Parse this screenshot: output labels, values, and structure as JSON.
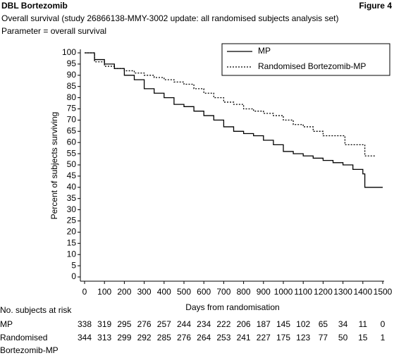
{
  "header": {
    "left": "DBL Bortezomib",
    "right": "Figure 4"
  },
  "chart_data": {
    "type": "line",
    "drawstyle": "steps-post",
    "title": "Overall survival (study 26866138-MMY-3002 update: all randomised subjects analysis set)",
    "subtitle": "Parameter = overall survival",
    "xlabel": "Days from randomisation",
    "ylabel": "Percent of subjects surviving",
    "xlim": [
      0,
      1500
    ],
    "ylim": [
      0,
      100
    ],
    "xticks": [
      0,
      100,
      200,
      300,
      400,
      500,
      600,
      700,
      800,
      900,
      1000,
      1100,
      1200,
      1300,
      1400,
      1500
    ],
    "yticks": [
      0,
      5,
      10,
      15,
      20,
      25,
      30,
      35,
      40,
      45,
      50,
      55,
      60,
      65,
      70,
      75,
      80,
      85,
      90,
      95,
      100
    ],
    "legend": "upper right",
    "series": [
      {
        "name": "MP",
        "color": "#000000",
        "linestyle": "solid",
        "x": [
          0,
          50,
          100,
          150,
          200,
          250,
          300,
          350,
          400,
          450,
          500,
          550,
          600,
          650,
          700,
          750,
          800,
          850,
          900,
          950,
          1000,
          1050,
          1100,
          1150,
          1200,
          1250,
          1300,
          1350,
          1400,
          1410,
          1500
        ],
        "values": [
          100,
          97,
          95,
          93,
          90,
          88,
          84,
          82,
          80,
          77,
          76,
          74,
          72,
          70,
          67,
          65,
          64,
          63,
          61,
          59,
          56,
          55,
          54,
          53,
          52,
          51,
          50,
          48,
          46,
          40,
          40
        ]
      },
      {
        "name": "Randomised Bortezomib-MP",
        "color": "#000000",
        "linestyle": "dotted",
        "x": [
          0,
          50,
          100,
          150,
          200,
          250,
          300,
          350,
          400,
          450,
          500,
          550,
          600,
          650,
          700,
          750,
          800,
          850,
          900,
          950,
          1000,
          1050,
          1100,
          1150,
          1200,
          1300,
          1310,
          1400,
          1410,
          1460
        ],
        "values": [
          100,
          96,
          94,
          93,
          92,
          91,
          90,
          89,
          88,
          87,
          86,
          84,
          82,
          80,
          78,
          77,
          75,
          74,
          73,
          72,
          70,
          68,
          67,
          65,
          63,
          63,
          59,
          59,
          54,
          54
        ]
      }
    ],
    "risk_table": {
      "title": "No. subjects at risk",
      "rows": [
        {
          "label_lines": [
            "MP"
          ],
          "values": [
            338,
            319,
            295,
            276,
            257,
            244,
            234,
            222,
            206,
            187,
            145,
            102,
            65,
            34,
            11,
            0
          ]
        },
        {
          "label_lines": [
            "Randomised",
            "Bortezomib-MP"
          ],
          "values": [
            344,
            313,
            299,
            292,
            285,
            276,
            264,
            253,
            241,
            227,
            175,
            123,
            77,
            50,
            15,
            1
          ]
        }
      ]
    }
  }
}
